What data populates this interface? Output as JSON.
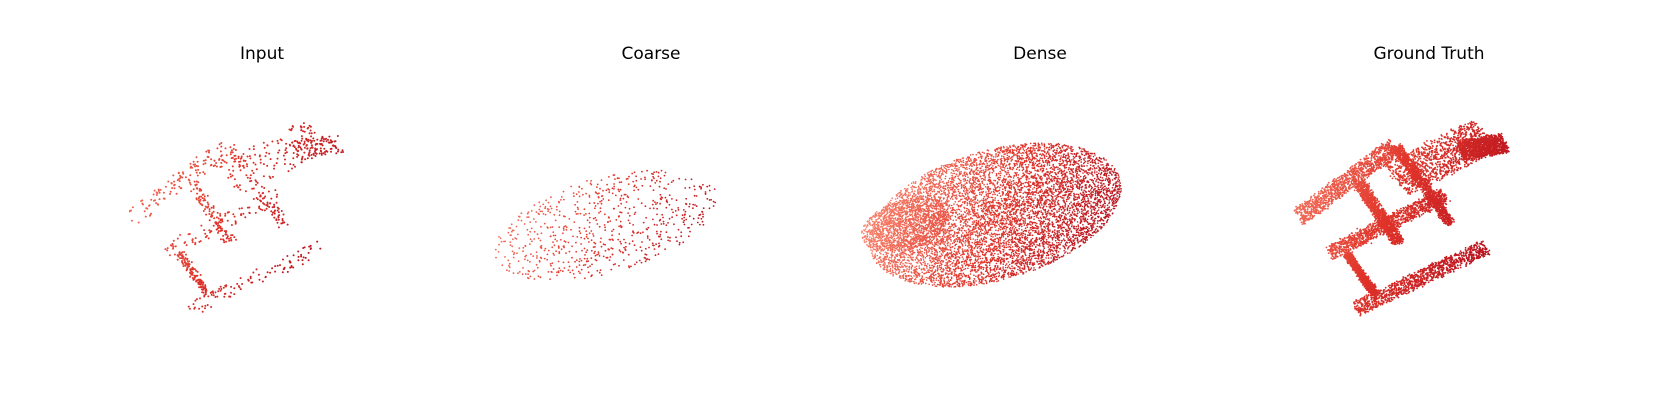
{
  "panels": [
    {
      "title": "Input",
      "style": "sparse-chair",
      "point_count": 900
    },
    {
      "title": "Coarse",
      "style": "blob-sparse",
      "point_count": 700
    },
    {
      "title": "Dense",
      "style": "blob-dense",
      "point_count": 9000
    },
    {
      "title": "Ground Truth",
      "style": "dense-chair",
      "point_count": 9000
    }
  ],
  "colors": {
    "light": "#f7826b",
    "mid": "#e0342a",
    "dark": "#b3101e"
  }
}
